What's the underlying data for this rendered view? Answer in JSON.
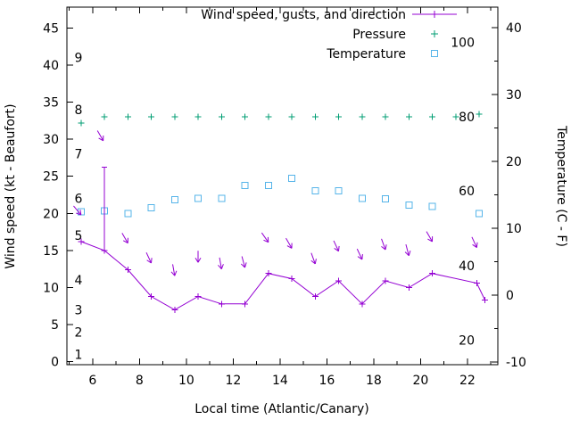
{
  "chart_data": {
    "type": "line",
    "title": "",
    "xlabel": "Local time (Atlantic/Canary)",
    "ylabel_left": "Wind speed (kt - Beaufort)",
    "ylabel_right": "Temperature (C - F)",
    "legend_position": "top-right-inside",
    "grid": false,
    "x_axis": {
      "min": 4.9,
      "max": 23.3,
      "major_ticks": [
        6,
        8,
        10,
        12,
        14,
        16,
        18,
        20,
        22
      ],
      "minor_tick_step": 1
    },
    "y_left_axis": {
      "min": -0.4,
      "max": 47.8,
      "ticks": [
        0,
        5,
        10,
        15,
        20,
        25,
        30,
        35,
        40,
        45
      ],
      "beaufort_scale": [
        {
          "label": "1",
          "kt": 1
        },
        {
          "label": "2",
          "kt": 4
        },
        {
          "label": "3",
          "kt": 7
        },
        {
          "label": "4",
          "kt": 11
        },
        {
          "label": "5",
          "kt": 17
        },
        {
          "label": "6",
          "kt": 22
        },
        {
          "label": "7",
          "kt": 28
        },
        {
          "label": "8",
          "kt": 34
        },
        {
          "label": "9",
          "kt": 41
        }
      ]
    },
    "y_right_axis": {
      "min": -10.4,
      "max": 43.1,
      "ticks": [
        -10,
        0,
        10,
        20,
        30,
        40
      ],
      "minor_tick_step": 5,
      "fahrenheit_labels": [
        {
          "label": "20",
          "c": -6.7
        },
        {
          "label": "40",
          "c": 4.4
        },
        {
          "label": "60",
          "c": 15.6
        },
        {
          "label": "80",
          "c": 26.7
        },
        {
          "label": "100",
          "c": 37.8
        }
      ]
    },
    "legend": [
      {
        "label": "Wind speed, gusts, and direction",
        "marker": "plus-line",
        "color": "#9400d3"
      },
      {
        "label": "Pressure",
        "marker": "plus",
        "color": "#009e73"
      },
      {
        "label": "Temperature",
        "marker": "square",
        "color": "#56b4e9"
      }
    ],
    "series": {
      "wind_speed_kt": {
        "x": [
          5.5,
          6.5,
          7.5,
          8.5,
          9.5,
          10.5,
          11.5,
          12.5,
          13.5,
          14.5,
          15.5,
          16.5,
          17.5,
          18.5,
          19.5,
          20.5,
          22.4,
          22.75
        ],
        "y": [
          16.2,
          15.0,
          12.4,
          8.8,
          7.0,
          8.8,
          7.8,
          7.8,
          11.9,
          11.2,
          8.8,
          10.9,
          7.8,
          10.9,
          10.0,
          11.9,
          10.6,
          8.3
        ]
      },
      "gust_bars": [
        {
          "x": 6.5,
          "low": 15.0,
          "high": 26.2
        }
      ],
      "wind_direction_arrows": [
        {
          "x": 5.5,
          "kt": 19.8,
          "rot": -40
        },
        {
          "x": 6.45,
          "kt": 29.8,
          "rot": -30
        },
        {
          "x": 7.5,
          "kt": 16.0,
          "rot": -30
        },
        {
          "x": 8.5,
          "kt": 13.3,
          "rot": -25
        },
        {
          "x": 9.5,
          "kt": 11.6,
          "rot": -10
        },
        {
          "x": 10.5,
          "kt": 13.4,
          "rot": 0
        },
        {
          "x": 11.5,
          "kt": 12.5,
          "rot": -10
        },
        {
          "x": 12.5,
          "kt": 12.7,
          "rot": -15
        },
        {
          "x": 13.5,
          "kt": 16.1,
          "rot": -35
        },
        {
          "x": 14.5,
          "kt": 15.3,
          "rot": -30
        },
        {
          "x": 15.5,
          "kt": 13.2,
          "rot": -20
        },
        {
          "x": 16.5,
          "kt": 14.9,
          "rot": -25
        },
        {
          "x": 17.5,
          "kt": 13.8,
          "rot": -25
        },
        {
          "x": 18.5,
          "kt": 15.1,
          "rot": -20
        },
        {
          "x": 19.5,
          "kt": 14.3,
          "rot": -15
        },
        {
          "x": 20.5,
          "kt": 16.2,
          "rot": -30
        },
        {
          "x": 22.4,
          "kt": 15.4,
          "rot": -25
        }
      ],
      "pressure": {
        "x": [
          5.5,
          6.5,
          7.5,
          8.5,
          9.5,
          10.5,
          11.5,
          12.5,
          13.5,
          14.5,
          15.5,
          16.5,
          17.5,
          18.5,
          19.5,
          20.5,
          21.5,
          22.5
        ],
        "y_plot_kt": [
          32.2,
          33.0,
          33.0,
          33.0,
          33.0,
          33.0,
          33.0,
          33.0,
          33.0,
          33.0,
          33.0,
          33.0,
          33.0,
          33.0,
          33.0,
          33.0,
          33.0,
          33.4
        ]
      },
      "temperature_c": {
        "x": [
          5.5,
          6.5,
          7.5,
          8.5,
          9.5,
          10.5,
          11.5,
          12.5,
          13.5,
          14.5,
          15.5,
          16.5,
          17.5,
          18.5,
          19.5,
          20.5,
          22.5
        ],
        "c": [
          12.5,
          12.6,
          12.2,
          13.1,
          14.3,
          14.5,
          14.5,
          16.4,
          16.4,
          17.5,
          15.6,
          15.6,
          14.5,
          14.4,
          13.5,
          13.3,
          12.2
        ]
      }
    }
  }
}
